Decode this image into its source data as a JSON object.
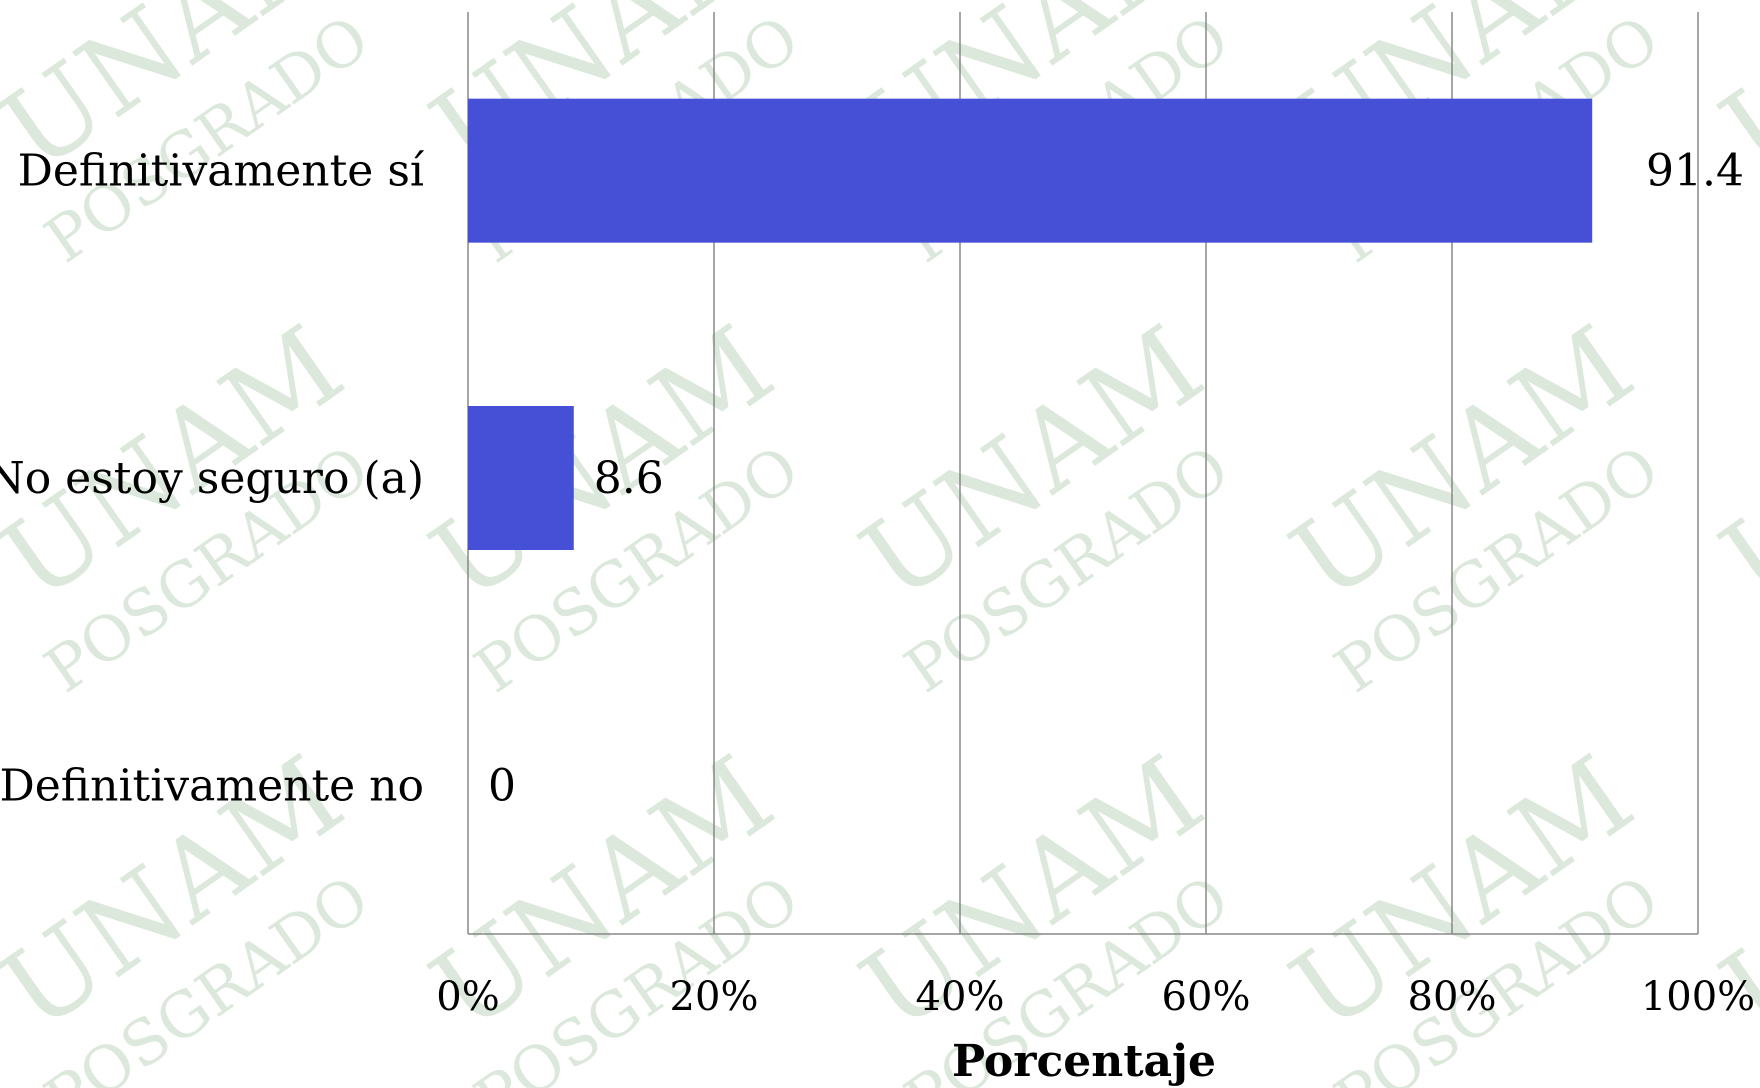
{
  "chart_data": {
    "type": "bar",
    "orientation": "horizontal",
    "categories": [
      "Definitivamente sí",
      "No estoy seguro (a)",
      "Definitivamente no"
    ],
    "values": [
      91.4,
      8.6,
      0
    ],
    "data_labels": [
      "91.4",
      "8.6",
      "0"
    ],
    "xlabel": "Porcentaje",
    "ylabel": "",
    "xlim": [
      0,
      100
    ],
    "x_ticks": [
      "0%",
      "20%",
      "40%",
      "60%",
      "80%",
      "100%"
    ],
    "grid": true,
    "legend": "none",
    "bar_color": "#4650d6",
    "grid_color": "#888888"
  },
  "watermark": {
    "top": "UNAM",
    "bottom": "POSGRADO",
    "color": "#5f9a5f"
  }
}
